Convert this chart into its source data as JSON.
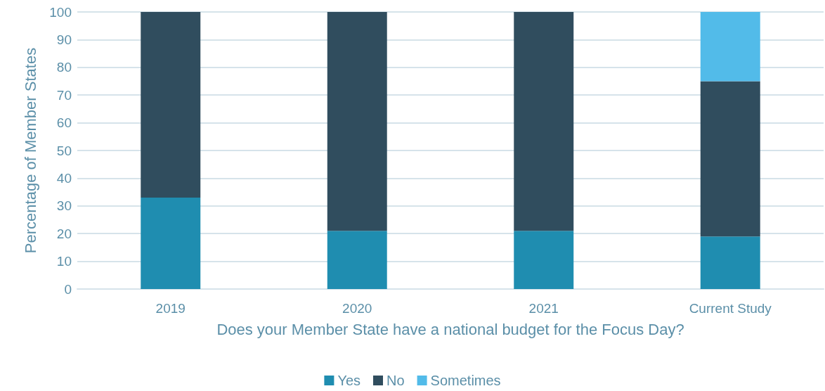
{
  "chart_data": {
    "type": "bar",
    "stacked": true,
    "xlabel": "Does your Member State have a national budget for the Focus Day?",
    "ylabel": "Percentage of Member States",
    "categories": [
      "2019",
      "2020",
      "2021",
      "Current Study"
    ],
    "series": [
      {
        "name": "Yes",
        "color": "#1f8db0",
        "values": [
          33,
          21,
          21,
          19
        ]
      },
      {
        "name": "No",
        "color": "#304d5e",
        "values": [
          67,
          79,
          79,
          56
        ]
      },
      {
        "name": "Sometimes",
        "color": "#52bbe9",
        "values": [
          0,
          0,
          0,
          25
        ]
      }
    ],
    "ylim": [
      0,
      100
    ],
    "yticks": [
      0,
      10,
      20,
      30,
      40,
      50,
      60,
      70,
      80,
      90,
      100
    ],
    "grid": "y",
    "legend": "bottom"
  }
}
